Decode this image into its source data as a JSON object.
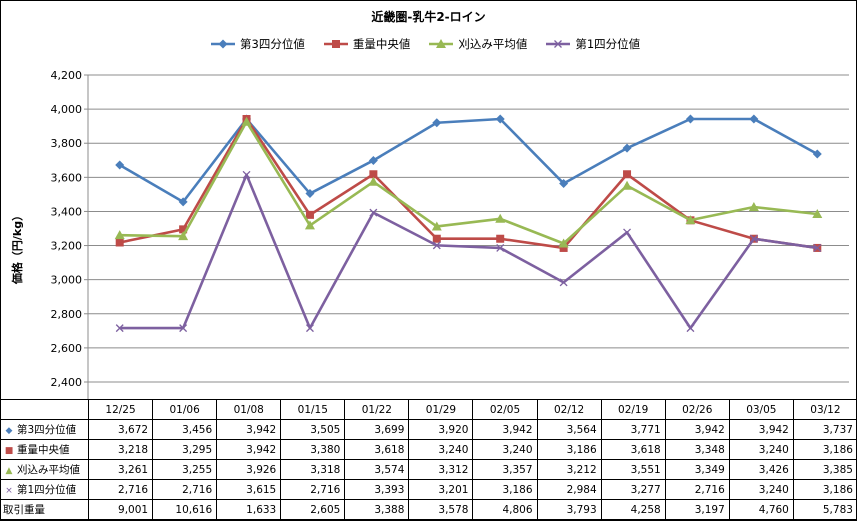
{
  "chart_data": {
    "type": "line",
    "title": "近畿圏-乳牛2-ロイン",
    "ylabel": "価格（円/kg）",
    "xlabel": "",
    "ylim": [
      2400,
      4200
    ],
    "yticks": [
      2400,
      2600,
      2800,
      3000,
      3200,
      3400,
      3600,
      3800,
      4000,
      4200
    ],
    "ytick_labels": [
      "2,400",
      "2,600",
      "2,800",
      "3,000",
      "3,200",
      "3,400",
      "3,600",
      "3,800",
      "4,000",
      "4,200"
    ],
    "grid": true,
    "legend_position": "top",
    "categories": [
      "12/25",
      "01/06",
      "01/08",
      "01/15",
      "01/22",
      "01/29",
      "02/05",
      "02/12",
      "02/19",
      "02/26",
      "03/05",
      "03/12"
    ],
    "series": [
      {
        "name": "第3四分位値",
        "color": "#4a7ebb",
        "marker": "diamond",
        "values": [
          3672,
          3456,
          3942,
          3505,
          3699,
          3920,
          3942,
          3564,
          3771,
          3942,
          3942,
          3737
        ],
        "labels": [
          "3,672",
          "3,456",
          "3,942",
          "3,505",
          "3,699",
          "3,920",
          "3,942",
          "3,564",
          "3,771",
          "3,942",
          "3,942",
          "3,737"
        ]
      },
      {
        "name": "重量中央値",
        "color": "#be4b48",
        "marker": "square",
        "values": [
          3218,
          3295,
          3942,
          3380,
          3618,
          3240,
          3240,
          3186,
          3618,
          3348,
          3240,
          3186
        ],
        "labels": [
          "3,218",
          "3,295",
          "3,942",
          "3,380",
          "3,618",
          "3,240",
          "3,240",
          "3,186",
          "3,618",
          "3,348",
          "3,240",
          "3,186"
        ]
      },
      {
        "name": "刈込み平均値",
        "color": "#98b954",
        "marker": "triangle",
        "values": [
          3261,
          3255,
          3926,
          3318,
          3574,
          3312,
          3357,
          3212,
          3551,
          3349,
          3426,
          3385
        ],
        "labels": [
          "3,261",
          "3,255",
          "3,926",
          "3,318",
          "3,574",
          "3,312",
          "3,357",
          "3,212",
          "3,551",
          "3,349",
          "3,426",
          "3,385"
        ]
      },
      {
        "name": "第1四分位値",
        "color": "#7d60a0",
        "marker": "x",
        "values": [
          2716,
          2716,
          3615,
          2716,
          3393,
          3201,
          3186,
          2984,
          3277,
          2716,
          3240,
          3186
        ],
        "labels": [
          "2,716",
          "2,716",
          "3,615",
          "2,716",
          "3,393",
          "3,201",
          "3,186",
          "2,984",
          "3,277",
          "2,716",
          "3,240",
          "3,186"
        ]
      }
    ],
    "extra_rows": [
      {
        "name": "取引重量",
        "values": [
          9001,
          10616,
          1633,
          2605,
          3388,
          3578,
          4806,
          3793,
          4258,
          3197,
          4760,
          5783
        ],
        "labels": [
          "9,001",
          "10,616",
          "1,633",
          "2,605",
          "3,388",
          "3,578",
          "4,806",
          "3,793",
          "4,258",
          "3,197",
          "4,760",
          "5,783"
        ]
      }
    ]
  }
}
